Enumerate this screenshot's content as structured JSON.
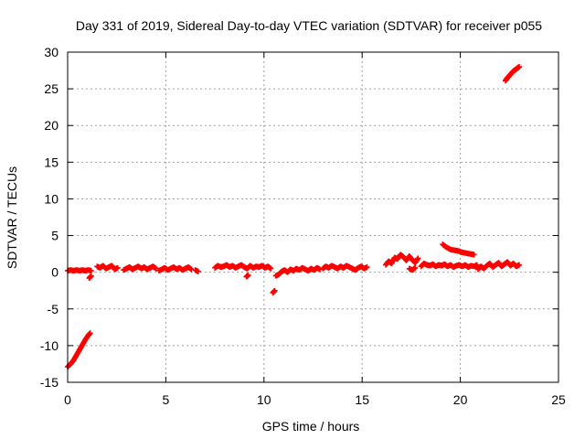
{
  "chart_data": {
    "type": "scatter",
    "title": "Day 331 of 2019, Sidereal Day-to-day VTEC variation (SDTVAR) for receiver p055",
    "xlabel": "GPS time / hours",
    "ylabel": "SDTVAR / TECUs",
    "xlim": [
      0,
      25
    ],
    "ylim": [
      -15,
      30
    ],
    "xticks": [
      0,
      5,
      10,
      15,
      20,
      25
    ],
    "yticks": [
      -15,
      -10,
      -5,
      0,
      5,
      10,
      15,
      20,
      25,
      30
    ],
    "grid": true,
    "legend": "none",
    "marker": "plus",
    "color": "#ff0000",
    "series": [
      {
        "name": "SDTVAR",
        "segments": [
          {
            "x": [
              0.0,
              0.15,
              0.3,
              0.45,
              0.6,
              0.75,
              0.9,
              1.05,
              1.15
            ],
            "y": [
              -12.9,
              -12.5,
              -12.0,
              -11.3,
              -10.6,
              -9.9,
              -9.2,
              -8.6,
              -8.3
            ]
          },
          {
            "x": [
              0.0,
              0.15,
              0.3,
              0.45,
              0.6,
              0.75,
              0.9,
              1.05,
              1.2
            ],
            "y": [
              0.2,
              0.3,
              0.2,
              0.3,
              0.2,
              0.3,
              0.2,
              0.3,
              0.2
            ]
          },
          {
            "x": [
              1.1,
              1.2
            ],
            "y": [
              -0.8,
              -0.5
            ]
          },
          {
            "x": [
              1.5,
              1.65,
              1.8,
              1.95,
              2.1,
              2.25,
              2.4,
              2.55
            ],
            "y": [
              0.8,
              0.6,
              0.9,
              0.5,
              0.7,
              0.9,
              0.4,
              0.6
            ]
          },
          {
            "x": [
              2.85,
              3.0,
              3.15,
              3.3,
              3.45,
              3.6,
              3.75,
              3.9,
              4.05,
              4.2,
              4.35,
              4.5
            ],
            "y": [
              0.3,
              0.5,
              0.7,
              0.4,
              0.6,
              0.8,
              0.5,
              0.7,
              0.4,
              0.6,
              0.8,
              0.5
            ]
          },
          {
            "x": [
              4.65,
              4.8,
              4.95,
              5.1,
              5.25,
              5.4,
              5.55,
              5.7,
              5.85,
              6.0,
              6.15,
              6.3
            ],
            "y": [
              0.2,
              0.4,
              0.6,
              0.3,
              0.5,
              0.7,
              0.4,
              0.6,
              0.3,
              0.5,
              0.7,
              0.4
            ]
          },
          {
            "x": [
              6.5,
              6.65
            ],
            "y": [
              0.3,
              0.1
            ]
          },
          {
            "x": [
              7.5,
              7.65,
              7.8,
              7.95,
              8.1,
              8.25,
              8.4,
              8.55,
              8.7,
              8.85,
              9.0,
              9.15,
              9.3,
              9.45,
              9.6,
              9.75,
              9.9,
              10.05,
              10.2,
              10.35
            ],
            "y": [
              0.6,
              0.9,
              0.7,
              0.8,
              1.0,
              0.7,
              0.9,
              0.6,
              0.8,
              1.0,
              0.7,
              0.5,
              0.9,
              0.6,
              0.8,
              0.7,
              0.9,
              0.6,
              0.8,
              0.5
            ]
          },
          {
            "x": [
              9.1,
              9.2
            ],
            "y": [
              -0.6,
              -0.4
            ]
          },
          {
            "x": [
              10.45,
              10.55
            ],
            "y": [
              -2.8,
              -2.5
            ]
          },
          {
            "x": [
              10.6,
              10.75,
              10.9,
              11.05,
              11.2,
              11.35,
              11.5,
              11.65,
              11.8,
              11.95,
              12.1,
              12.25,
              12.4,
              12.55,
              12.7,
              12.85
            ],
            "y": [
              -0.5,
              -0.3,
              0.1,
              0.3,
              0.0,
              0.4,
              0.2,
              0.5,
              0.3,
              0.6,
              0.4,
              0.2,
              0.5,
              0.3,
              0.6,
              0.4
            ]
          },
          {
            "x": [
              13.0,
              13.15,
              13.3,
              13.45,
              13.6,
              13.75,
              13.9,
              14.05,
              14.2,
              14.35,
              14.5,
              14.65,
              14.8,
              14.95,
              15.1,
              15.25
            ],
            "y": [
              0.5,
              0.8,
              0.6,
              0.9,
              0.7,
              0.5,
              0.8,
              0.6,
              0.9,
              0.7,
              0.5,
              0.3,
              0.6,
              0.8,
              0.5,
              0.7
            ]
          },
          {
            "x": [
              16.2,
              16.35,
              16.5,
              16.65,
              16.8,
              16.95,
              17.1,
              17.25,
              17.4,
              17.55,
              17.7,
              17.85
            ],
            "y": [
              1.0,
              1.5,
              1.2,
              2.0,
              1.8,
              2.4,
              2.1,
              1.6,
              2.2,
              1.7,
              1.3,
              1.9
            ]
          },
          {
            "x": [
              18.0,
              18.15,
              18.3,
              18.45,
              18.6,
              18.75,
              18.9,
              19.05,
              19.2,
              19.35,
              19.5,
              19.65,
              19.8,
              19.95,
              20.1,
              20.25,
              20.4,
              20.55,
              20.7,
              20.85
            ],
            "y": [
              0.8,
              1.2,
              1.0,
              0.9,
              1.1,
              0.8,
              1.0,
              0.9,
              1.1,
              0.8,
              1.0,
              0.7,
              0.9,
              1.0,
              0.8,
              1.0,
              0.7,
              0.9,
              0.8,
              1.0
            ]
          },
          {
            "x": [
              17.4,
              17.55,
              17.7
            ],
            "y": [
              0.5,
              0.3,
              0.6
            ]
          },
          {
            "x": [
              19.1,
              19.3,
              19.5,
              19.7,
              19.9,
              20.1,
              20.3,
              20.5,
              20.7
            ],
            "y": [
              3.8,
              3.4,
              3.1,
              3.0,
              2.9,
              2.7,
              2.6,
              2.5,
              2.4
            ]
          },
          {
            "x": [
              20.9,
              21.05,
              21.2,
              21.35,
              21.5,
              21.65,
              21.8,
              21.95,
              22.1,
              22.25,
              22.4,
              22.55,
              22.7,
              22.85,
              23.0
            ],
            "y": [
              0.4,
              0.8,
              0.5,
              0.9,
              1.2,
              0.7,
              1.0,
              1.3,
              0.8,
              1.1,
              1.4,
              0.9,
              1.2,
              0.8,
              1.0
            ]
          },
          {
            "x": [
              22.3,
              22.4,
              22.5,
              22.6,
              22.7,
              22.8,
              22.9,
              23.0
            ],
            "y": [
              26.1,
              26.5,
              26.8,
              27.1,
              27.4,
              27.6,
              27.8,
              28.0
            ]
          }
        ]
      }
    ]
  }
}
